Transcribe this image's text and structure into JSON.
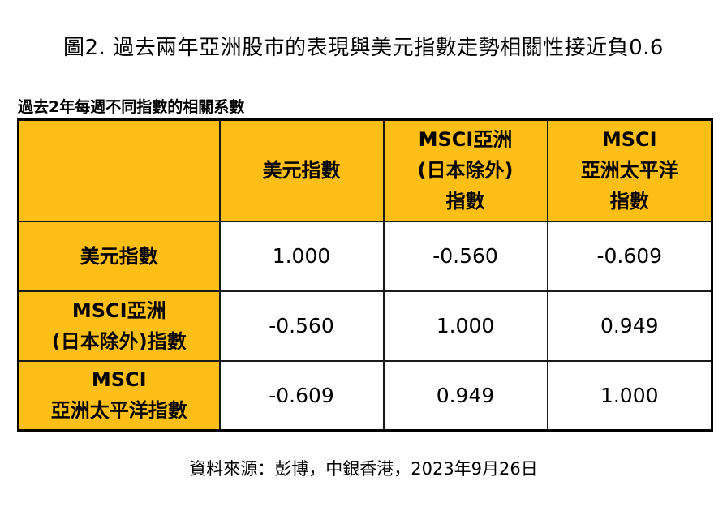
{
  "title": "圖2.  過去兩年亞洲股市的表現與美元指數走勢相關性接近負0.6",
  "subtitle": "過去2年每週不同指數的相關系數",
  "table": {
    "columns": [
      "",
      "美元指數",
      "MSCI亞洲\n(日本除外)\n指數",
      "MSCI\n亞洲太平洋\n指數"
    ],
    "rows": [
      {
        "label": "美元指數",
        "values": [
          "1.000",
          "-0.560",
          "-0.609"
        ]
      },
      {
        "label": "MSCI亞洲\n(日本除外)指數",
        "values": [
          "-0.560",
          "1.000",
          "0.949"
        ]
      },
      {
        "label": "MSCI\n亞洲太平洋指數",
        "values": [
          "-0.609",
          "0.949",
          "1.000"
        ]
      }
    ]
  },
  "source": "資料來源：彭博，中銀香港，2023年9月26日",
  "colors": {
    "header_fill": "#FDBE16",
    "border": "#1a1a1a"
  }
}
